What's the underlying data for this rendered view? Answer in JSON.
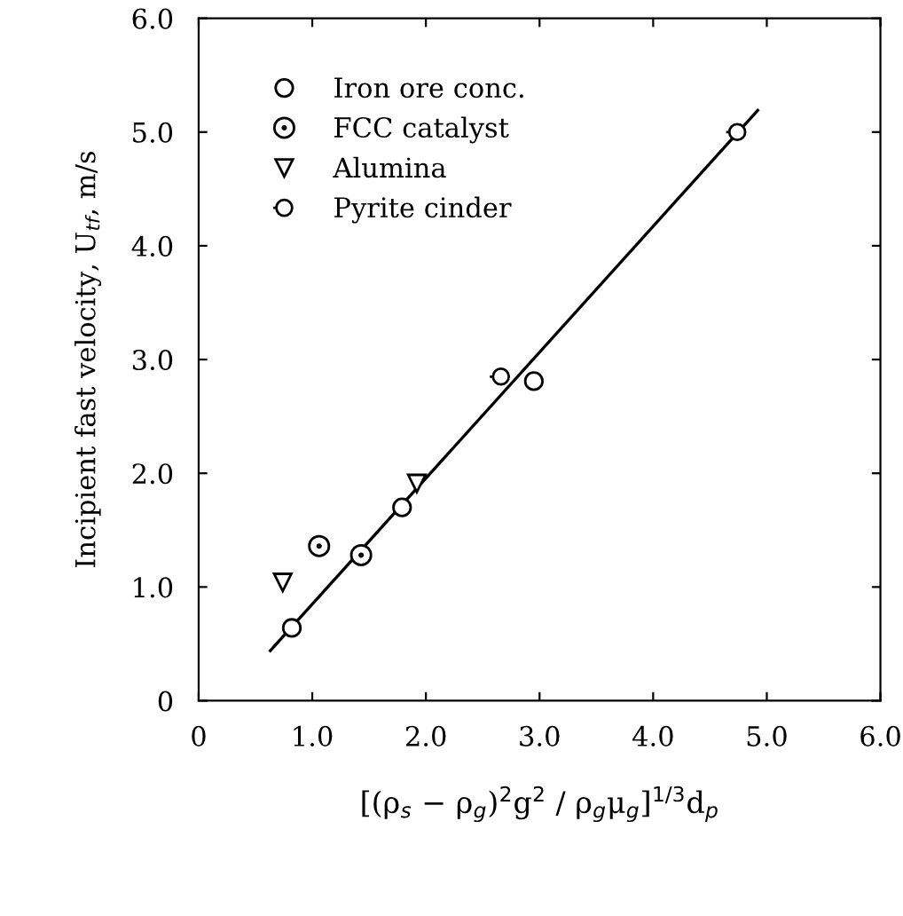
{
  "chart_data": {
    "type": "scatter",
    "xlabel": "[(ρ$_{s}$ − ρ$_{g}$)$^{2}$g$^{2}$ / ρ$_{g}$μ$_{g}$]$^{1/3}$d$_{p}$",
    "ylabel": "Incipient fast velocity, U$_{tf}$, m/s",
    "series": [
      {
        "name": "Iron ore conc.",
        "color": "#000000",
        "marker": "circle",
        "x": [
          0.82,
          1.79,
          2.95
        ],
        "values": [
          0.64,
          1.7,
          2.81
        ]
      },
      {
        "name": "FCC catalyst",
        "color": "#000000",
        "marker": "circle",
        "x": [
          1.06,
          1.43
        ],
        "values": [
          1.36,
          1.28
        ]
      },
      {
        "name": "Alumina",
        "color": "#000000",
        "marker": "triangle",
        "x": [
          0.74,
          1.92
        ],
        "values": [
          1.04,
          1.91
        ]
      },
      {
        "name": "Pyrite cinder",
        "color": "#000000",
        "x": [
          2.66,
          4.74
        ],
        "values": [
          2.85,
          5.0
        ]
      },
      {
        "type": "line",
        "color": "#000000",
        "line_style": "solid",
        "x": [
          0.63,
          4.92
        ],
        "values": [
          0.44,
          5.19
        ]
      }
    ],
    "xlim": [
      0,
      6
    ],
    "ylim": [
      0,
      6
    ],
    "xticks": [
      0,
      {
        "value": 1,
        "label": "1.0"
      },
      {
        "value": 2,
        "label": "2.0"
      },
      {
        "value": 3,
        "label": "3.0"
      },
      {
        "value": 4,
        "label": "4.0"
      },
      {
        "value": 5,
        "label": "5.0"
      },
      {
        "value": 6,
        "label": "6.0"
      }
    ],
    "yticks": [
      0,
      {
        "value": 1,
        "label": "1.0"
      },
      {
        "value": 2,
        "label": "2.0"
      },
      {
        "value": 3,
        "label": "3.0"
      },
      {
        "value": 4,
        "label": "4.0"
      },
      {
        "value": 5,
        "label": "5.0"
      },
      {
        "value": 6,
        "label": "6.0"
      }
    ],
    "grid": false,
    "legend": "top left"
  }
}
